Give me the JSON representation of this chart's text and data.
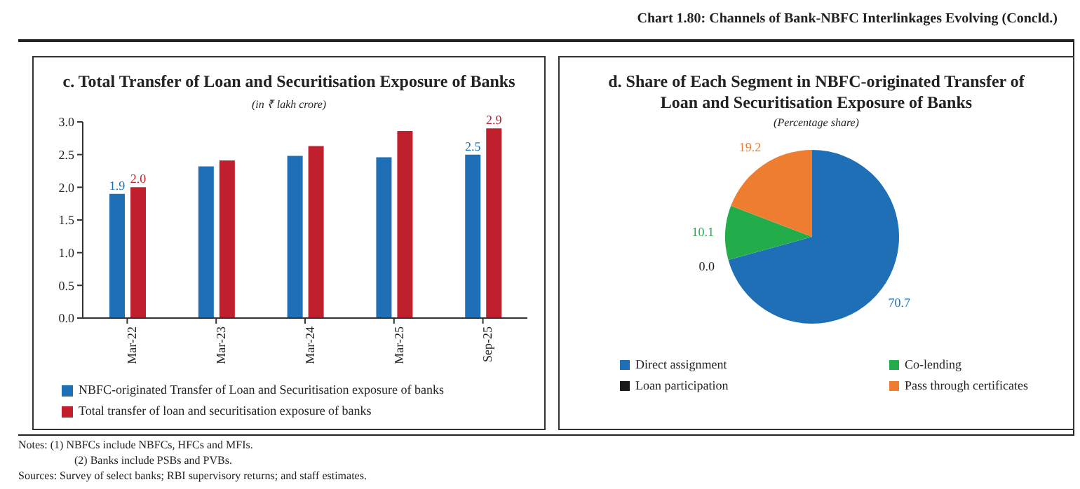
{
  "chart_data": [
    {
      "type": "bar",
      "title": "c. Total Transfer of Loan and Securitisation Exposure of Banks",
      "subtitle": "(in ₹ lakh crore)",
      "categories": [
        "Mar-22",
        "Mar-23",
        "Mar-24",
        "Mar-25",
        "Sep-25"
      ],
      "series": [
        {
          "name": "NBFC-originated Transfer of Loan and Securitisation exposure of banks",
          "color": "#1f6fb6",
          "values": [
            1.9,
            2.32,
            2.48,
            2.46,
            2.5
          ],
          "value_labels": [
            "1.9",
            null,
            null,
            null,
            "2.5"
          ]
        },
        {
          "name": "Total transfer of loan and securitisation exposure of banks",
          "color": "#c0202e",
          "values": [
            2.0,
            2.41,
            2.63,
            2.86,
            2.9
          ],
          "value_labels": [
            "2.0",
            null,
            null,
            null,
            "2.9"
          ]
        }
      ],
      "ylim": [
        0,
        3
      ],
      "yticks": [
        {
          "value": 0,
          "label": "0.0"
        },
        {
          "value": 0.5,
          "label": "0.5"
        },
        {
          "value": 1,
          "label": "1.0"
        },
        {
          "value": 1.5,
          "label": "1.5"
        },
        {
          "value": 2,
          "label": "2.0"
        },
        {
          "value": 2.5,
          "label": "2.5"
        },
        {
          "value": 3,
          "label": "3.0"
        }
      ],
      "grid": false,
      "legend": "bottom",
      "annotations": [
        "Chart 1.80: Channels of Bank-NBFC Interlinkages Evolving (Concld.)",
        "Notes: (1) NBFCs include NBFCs, HFCs and MFIs.",
        "(2) Banks include PSBs and PVBs.",
        "Sources: Survey of select banks; RBI supervisory returns; and staff estimates."
      ]
    },
    {
      "type": "pie",
      "title": "d. Share of Each Segment in NBFC-originated Transfer of Loan and Securitisation Exposure of Banks",
      "subtitle": "(Percentage share)",
      "categories": [
        "Direct assignment",
        "Loan participation",
        "Co-lending",
        "Pass through certificates"
      ],
      "values": [
        70.7,
        0.0,
        10.1,
        19.2
      ],
      "colors": [
        "#1f6fb6",
        "#1a1a1a",
        "#22ad4a",
        "#ee7d31"
      ],
      "value_labels": [
        "70.7",
        "0.0",
        "10.1",
        "19.2"
      ],
      "legend": "bottom"
    }
  ]
}
